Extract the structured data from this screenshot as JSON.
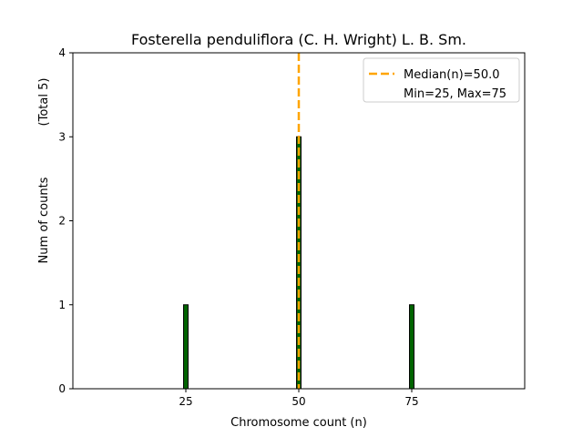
{
  "chart_data": {
    "type": "bar",
    "title": "Fosterella penduliflora (C. H. Wright) L. B. Sm.",
    "xlabel": "Chromosome count (n)",
    "ylabel_main": "Num of counts",
    "ylabel_total": "(Total 5)",
    "xlim": [
      0,
      100
    ],
    "ylim": [
      0,
      4
    ],
    "x_ticks": [
      25,
      50,
      75
    ],
    "y_ticks": [
      0,
      1,
      2,
      3,
      4
    ],
    "bin_width": 1,
    "bars": [
      {
        "x": 25,
        "count": 1
      },
      {
        "x": 50,
        "count": 3
      },
      {
        "x": 75,
        "count": 1
      }
    ],
    "median": 50.0,
    "legend": {
      "position": "upper right",
      "median_label": "Median(n)=50.0",
      "range_label": "Min=25, Max=75"
    },
    "colors": {
      "bar_fill": "#006400",
      "bar_edge": "#000000",
      "median_line": "#FFA500",
      "axes": "#000000"
    }
  }
}
